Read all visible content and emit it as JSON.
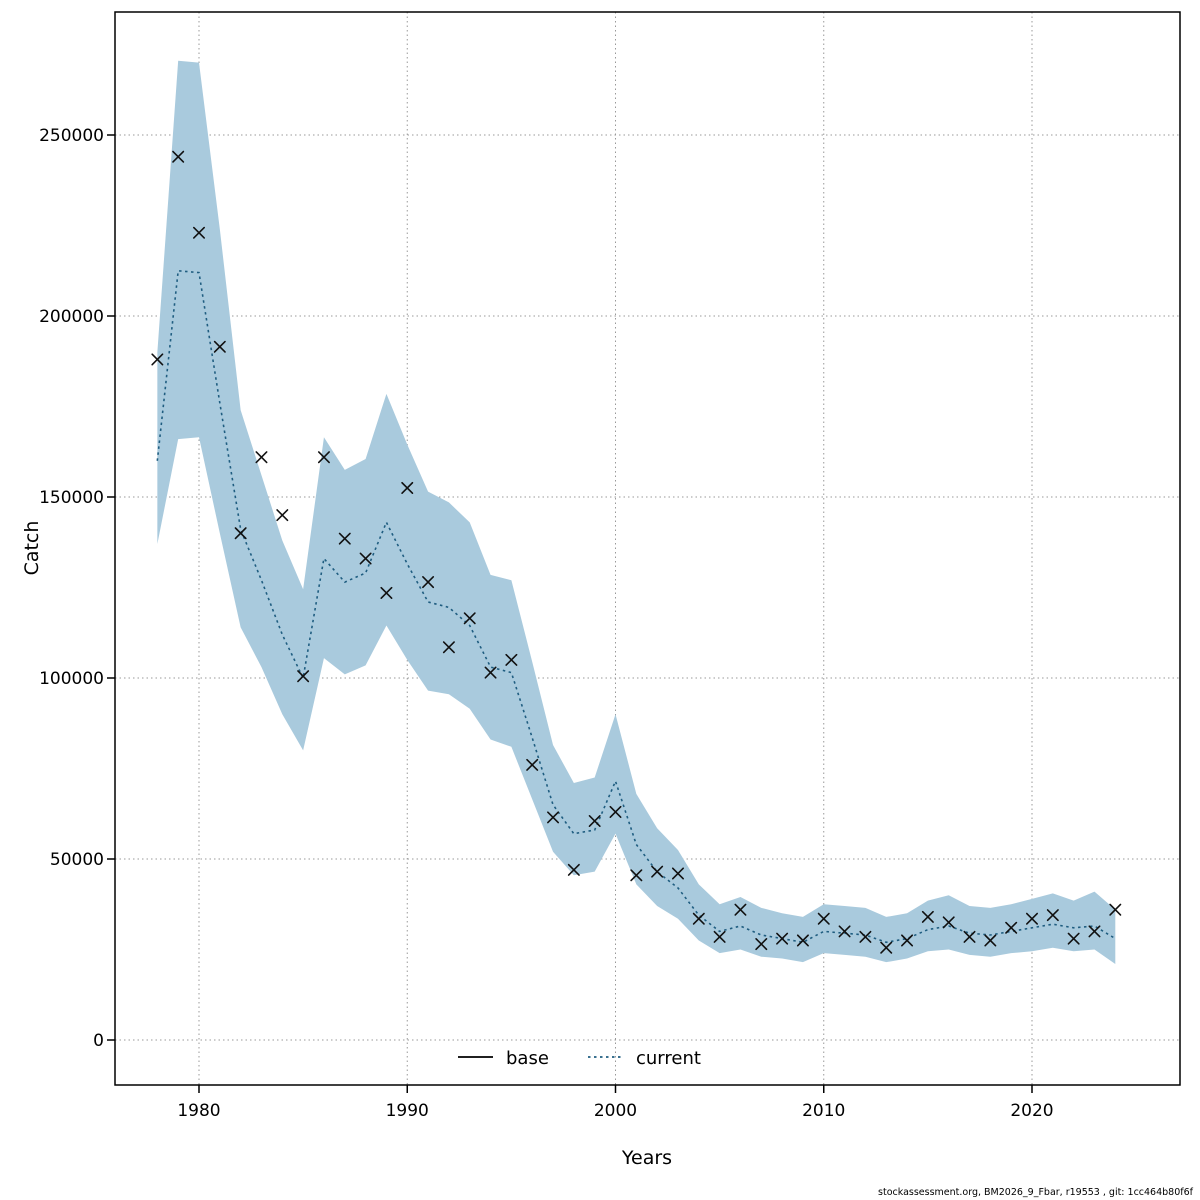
{
  "footer": "stockassessment.org, BM2026_9_Fbar, r19553 , git: 1cc464b80f6f",
  "chart_data": {
    "type": "line",
    "title": "",
    "xlabel": "Years",
    "ylabel": "Catch",
    "x_ticks": [
      1980,
      1990,
      2000,
      2010,
      2020
    ],
    "y_ticks": [
      0,
      50000,
      100000,
      150000,
      200000,
      250000
    ],
    "xlim": [
      1976,
      2026.5
    ],
    "ylim": [
      -12000,
      284000
    ],
    "grid": true,
    "legend_position": "bottom-center-inside",
    "colors": {
      "band": "#a9cadd",
      "current_line": "#1f5d80",
      "marker": "#111111",
      "grid": "#999999",
      "frame": "#000000"
    },
    "legend": [
      {
        "label": "base",
        "style": "solid",
        "color": "#000000"
      },
      {
        "label": "current",
        "style": "dotted",
        "color": "#1f5d80"
      }
    ],
    "x": [
      1978,
      1979,
      1980,
      1981,
      1982,
      1983,
      1984,
      1985,
      1986,
      1987,
      1988,
      1989,
      1990,
      1991,
      1992,
      1993,
      1994,
      1995,
      1996,
      1997,
      1998,
      1999,
      2000,
      2001,
      2002,
      2003,
      2004,
      2005,
      2006,
      2007,
      2008,
      2009,
      2010,
      2011,
      2012,
      2013,
      2014,
      2015,
      2016,
      2017,
      2018,
      2019,
      2020,
      2021,
      2022,
      2023,
      2024
    ],
    "series": [
      {
        "name": "observed_catch_markers",
        "marker": "x",
        "values": [
          188000,
          244000,
          223000,
          191500,
          140000,
          161000,
          145000,
          100500,
          161000,
          138500,
          133000,
          123500,
          152500,
          126500,
          108500,
          116500,
          101500,
          105000,
          76000,
          61500,
          47000,
          60500,
          63000,
          45500,
          46500,
          46000,
          33500,
          28500,
          36000,
          26500,
          28000,
          27500,
          33500,
          30000,
          28500,
          25500,
          27500,
          34000,
          32500,
          28500,
          27500,
          31000,
          33500,
          34500,
          28000,
          30000,
          36000
        ]
      },
      {
        "name": "current",
        "line": "dotted",
        "values": [
          160000,
          212500,
          212000,
          176000,
          141000,
          127000,
          112000,
          100000,
          133000,
          126500,
          129000,
          143000,
          131500,
          121000,
          119500,
          114500,
          103000,
          101500,
          83500,
          65000,
          57000,
          58000,
          71500,
          54000,
          46500,
          42000,
          34500,
          30000,
          31500,
          29000,
          28000,
          27000,
          30000,
          29500,
          29000,
          27000,
          28000,
          30500,
          31500,
          29500,
          29000,
          30000,
          31000,
          32000,
          31000,
          31500,
          28000
        ]
      }
    ],
    "band": {
      "name": "current_confidence_band",
      "lower": [
        137000,
        166000,
        166500,
        140000,
        114000,
        103000,
        90000,
        80000,
        105500,
        101000,
        103500,
        114500,
        105000,
        96500,
        95500,
        91500,
        83000,
        81000,
        66500,
        52000,
        45500,
        46500,
        57000,
        43000,
        37000,
        33500,
        27500,
        24000,
        25000,
        23000,
        22500,
        21500,
        24000,
        23500,
        23000,
        21500,
        22500,
        24500,
        25000,
        23500,
        23000,
        24000,
        24500,
        25500,
        24500,
        25000,
        21000
      ],
      "upper": [
        190000,
        270500,
        270000,
        224000,
        174000,
        156000,
        138000,
        124500,
        166500,
        157500,
        160500,
        178500,
        164500,
        151500,
        148500,
        143000,
        128500,
        127000,
        104500,
        81500,
        71000,
        72500,
        90000,
        68000,
        58500,
        52500,
        43000,
        37500,
        39500,
        36500,
        35000,
        34000,
        37500,
        37000,
        36500,
        34000,
        35000,
        38500,
        40000,
        37000,
        36500,
        37500,
        39000,
        40500,
        38500,
        41000,
        36000
      ]
    }
  }
}
